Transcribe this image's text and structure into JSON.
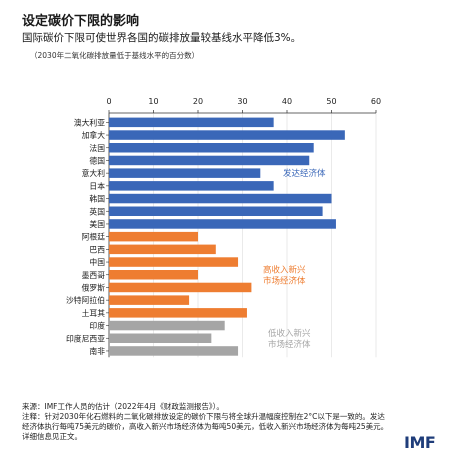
{
  "header": {
    "title": "设定碳价下限的影响",
    "subtitle": "国际碳价下限可使世界各国的碳排放量较基线水平降低3%。",
    "unit_note": "（2030年二氧化碳排放量低于基线水平的百分数）"
  },
  "chart_data": {
    "type": "bar",
    "orientation": "horizontal",
    "xlim": [
      0,
      60
    ],
    "xticks": [
      "0",
      "10",
      "20",
      "30",
      "40",
      "50",
      "60"
    ],
    "xtick_values": [
      0,
      10,
      20,
      30,
      40,
      50,
      60
    ],
    "axis_position": "top",
    "grid": true,
    "categories": [
      "澳大利亚",
      "加拿大",
      "法国",
      "德国",
      "意大利",
      "日本",
      "韩国",
      "英国",
      "美国",
      "阿根廷",
      "巴西",
      "中国",
      "墨西哥",
      "俄罗斯",
      "沙特阿拉伯",
      "土耳其",
      "印度",
      "印度尼西亚",
      "南非"
    ],
    "values": [
      37,
      53,
      46,
      45,
      34,
      37,
      50,
      48,
      51,
      20,
      24,
      29,
      20,
      32,
      18,
      31,
      26,
      23,
      29
    ],
    "groups": [
      {
        "label": "发达经济体",
        "color": "#3a67b8",
        "count": 9
      },
      {
        "label": "高收入新兴\n市场经济体",
        "color": "#ee7d31",
        "count": 7
      },
      {
        "label": "低收入新兴\n市场经济体",
        "color": "#a5a5a5",
        "count": 3
      }
    ]
  },
  "footer": {
    "source": "来源：IMF工作人员的估计（2022年4月《财政监测报告》）。",
    "note": "注释：针对2030年化石燃料的二氧化碳排放设定的碳价下限与将全球升温幅度控制在2°C以下是一致的。发达经济体执行每吨75美元的碳价，高收入新兴市场经济体为每吨50美元，低收入新兴市场经济体为每吨25美元。详细信息见正文。"
  },
  "brand": {
    "logo_text": "IMF",
    "color": "#1f3d7a"
  }
}
